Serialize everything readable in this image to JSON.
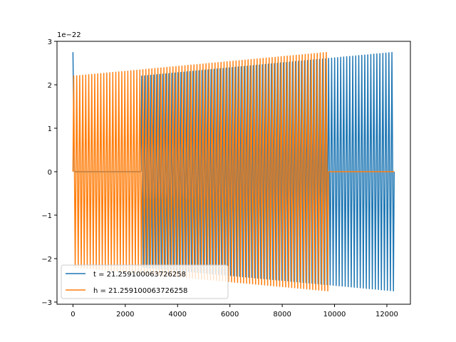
{
  "chart_data": {
    "type": "line",
    "title": "",
    "xlabel": "",
    "ylabel": "",
    "offset_text": "1e−22",
    "xlim": [
      -610,
      12900
    ],
    "ylim": [
      -3.05,
      3.0
    ],
    "xticks": [
      0,
      2000,
      4000,
      6000,
      8000,
      10000,
      12000
    ],
    "xtick_labels": [
      "0",
      "2000",
      "4000",
      "6000",
      "8000",
      "10000",
      "12000"
    ],
    "yticks": [
      -3,
      -2,
      -1,
      0,
      1,
      2,
      3
    ],
    "ytick_labels": [
      "−3",
      "−2",
      "−1",
      "0",
      "1",
      "2",
      "3"
    ],
    "grid": false,
    "legend_position": "lower-left",
    "series": [
      {
        "name": "t = 21.259100063726258",
        "color": "#1f77b4",
        "segments": [
          {
            "x_start": 0,
            "x_end": 50,
            "kind": "spike",
            "y_start": 2.75,
            "y_end": 0.0
          },
          {
            "x_start": 50,
            "x_end": 2600,
            "kind": "flat",
            "value": 0.0
          },
          {
            "x_start": 2600,
            "x_end": 12280,
            "kind": "oscillation",
            "amplitude_start": 2.2,
            "amplitude_end": 2.75
          }
        ]
      },
      {
        "name": "h = 21.259100063726258",
        "color": "#ff7f0e",
        "segments": [
          {
            "x_start": 0,
            "x_end": 9770,
            "kind": "oscillation",
            "amplitude_start": 2.2,
            "amplitude_end": 2.75
          },
          {
            "x_start": 9770,
            "x_end": 12280,
            "kind": "flat",
            "value": 0.0
          }
        ]
      }
    ]
  }
}
